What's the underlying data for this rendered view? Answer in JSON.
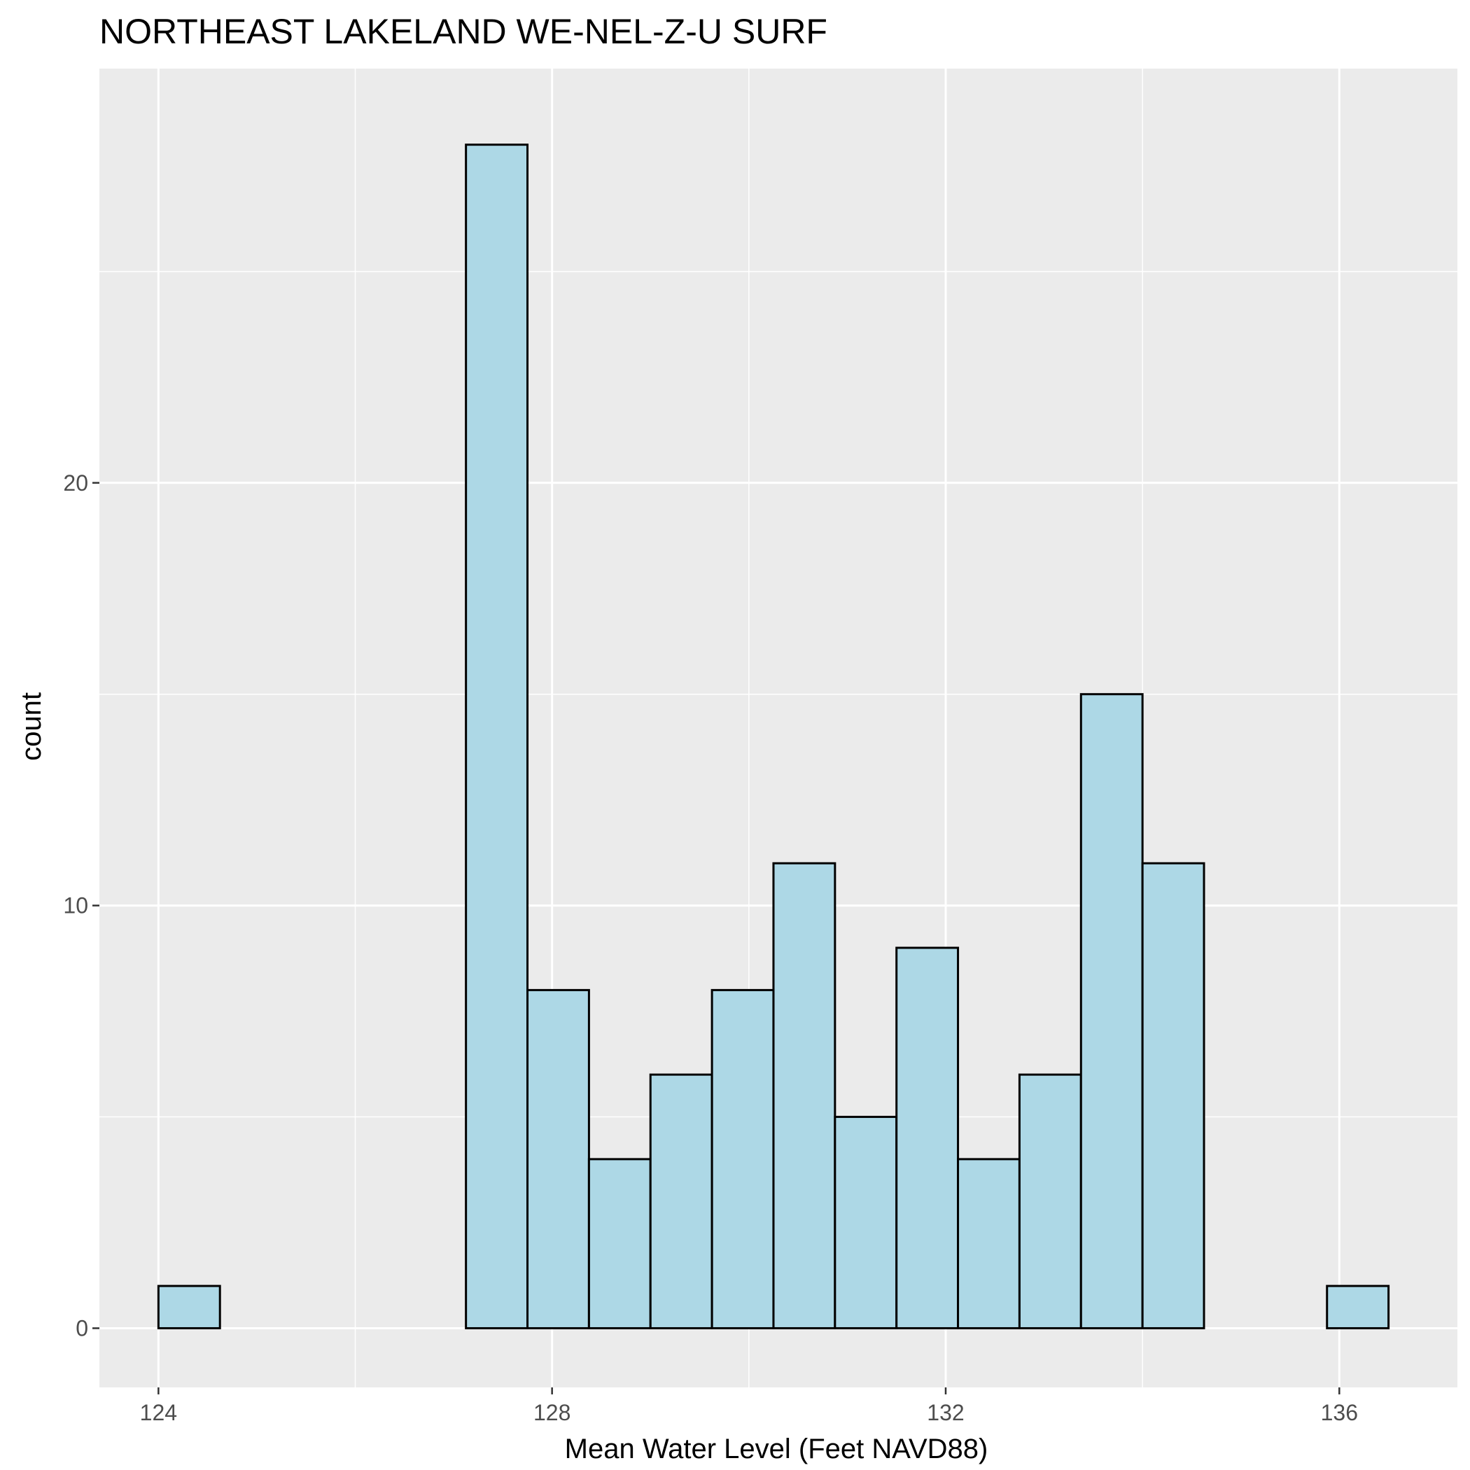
{
  "chart_data": {
    "type": "bar",
    "subtype": "histogram",
    "title": "NORTHEAST LAKELAND WE-NEL-Z-U SURF",
    "xlabel": "Mean Water Level (Feet NAVD88)",
    "ylabel": "count",
    "xlim": [
      123.4,
      137.2
    ],
    "ylim": [
      -1.4,
      29.8
    ],
    "x_ticks": [
      124,
      128,
      132,
      136
    ],
    "x_tick_labels": [
      "124",
      "128",
      "132",
      "136"
    ],
    "y_ticks": [
      0,
      10,
      20
    ],
    "y_tick_labels": [
      "0",
      "10",
      "20"
    ],
    "bin_width": 0.625,
    "bins": [
      {
        "x0": 124.0,
        "x1": 124.625,
        "count": 1
      },
      {
        "x0": 124.625,
        "x1": 125.25,
        "count": 0
      },
      {
        "x0": 125.25,
        "x1": 125.875,
        "count": 0
      },
      {
        "x0": 125.875,
        "x1": 126.5,
        "count": 0
      },
      {
        "x0": 126.5,
        "x1": 127.125,
        "count": 0
      },
      {
        "x0": 127.125,
        "x1": 127.75,
        "count": 28
      },
      {
        "x0": 127.75,
        "x1": 128.375,
        "count": 8
      },
      {
        "x0": 128.375,
        "x1": 129.0,
        "count": 4
      },
      {
        "x0": 129.0,
        "x1": 129.625,
        "count": 6
      },
      {
        "x0": 129.625,
        "x1": 130.25,
        "count": 8
      },
      {
        "x0": 130.25,
        "x1": 130.875,
        "count": 11
      },
      {
        "x0": 130.875,
        "x1": 131.5,
        "count": 5
      },
      {
        "x0": 131.5,
        "x1": 132.125,
        "count": 9
      },
      {
        "x0": 132.125,
        "x1": 132.75,
        "count": 4
      },
      {
        "x0": 132.75,
        "x1": 133.375,
        "count": 6
      },
      {
        "x0": 133.375,
        "x1": 134.0,
        "count": 15
      },
      {
        "x0": 134.0,
        "x1": 134.625,
        "count": 11
      },
      {
        "x0": 134.625,
        "x1": 135.25,
        "count": 0
      },
      {
        "x0": 135.25,
        "x1": 135.875,
        "count": 0
      },
      {
        "x0": 135.875,
        "x1": 136.5,
        "count": 1
      }
    ],
    "fill_color": "#add8e6",
    "outline_color": "#000000",
    "panel_color": "#ebebeb",
    "grid": true,
    "legend": "none"
  }
}
